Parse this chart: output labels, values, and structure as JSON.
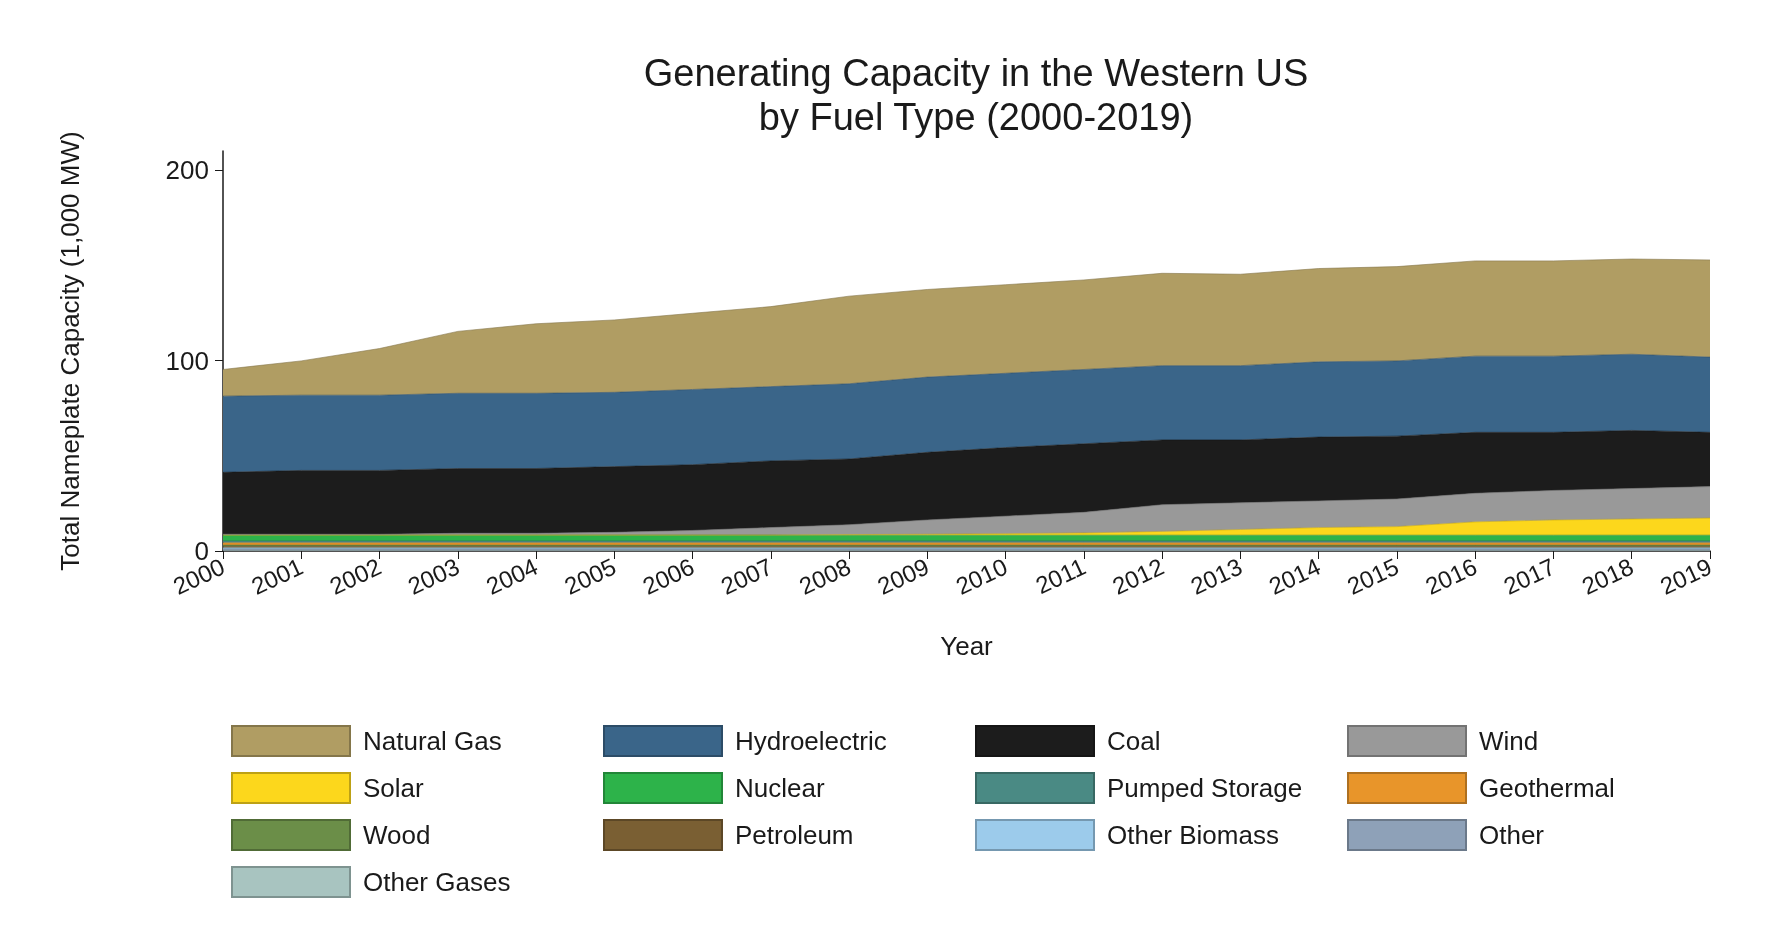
{
  "chart_data": {
    "type": "area",
    "stacked": true,
    "title": "Generating Capacity in the Western US\nby Fuel Type (2000-2019)",
    "xlabel": "Year",
    "ylabel": "Total Nameplate Capacity (1,000 MW)",
    "categories": [
      "2000",
      "2001",
      "2002",
      "2003",
      "2004",
      "2005",
      "2006",
      "2007",
      "2008",
      "2009",
      "2010",
      "2011",
      "2012",
      "2013",
      "2014",
      "2015",
      "2016",
      "2017",
      "2018",
      "2019"
    ],
    "ylim": [
      0,
      210
    ],
    "yticks": [
      0,
      100,
      200
    ],
    "grid": false,
    "legend": "bottom",
    "marker": "none",
    "series": [
      {
        "name": "Other Gases",
        "color": "#a8c4c0",
        "values": [
          0.3,
          0.3,
          0.3,
          0.3,
          0.3,
          0.3,
          0.3,
          0.3,
          0.3,
          0.3,
          0.3,
          0.3,
          0.3,
          0.3,
          0.3,
          0.3,
          0.3,
          0.3,
          0.3,
          0.3
        ]
      },
      {
        "name": "Other",
        "color": "#8ea1b8",
        "values": [
          0.8,
          0.8,
          0.8,
          0.8,
          0.8,
          0.8,
          0.8,
          0.8,
          0.8,
          0.8,
          0.8,
          0.8,
          0.8,
          0.8,
          0.8,
          0.8,
          0.8,
          0.8,
          0.8,
          0.8
        ]
      },
      {
        "name": "Other Biomass",
        "color": "#9ccbeb",
        "values": [
          0.6,
          0.6,
          0.6,
          0.6,
          0.6,
          0.6,
          0.6,
          0.6,
          0.6,
          0.6,
          0.6,
          0.6,
          0.6,
          0.6,
          0.6,
          0.6,
          0.6,
          0.6,
          0.6,
          0.6
        ]
      },
      {
        "name": "Petroleum",
        "color": "#7a5f33",
        "values": [
          0.8,
          0.8,
          0.8,
          0.8,
          0.8,
          0.8,
          0.8,
          0.8,
          0.8,
          0.8,
          0.8,
          0.8,
          0.8,
          0.8,
          0.8,
          0.8,
          0.8,
          0.8,
          0.8,
          0.8
        ]
      },
      {
        "name": "Wood",
        "color": "#6b8e48",
        "values": [
          0.6,
          0.6,
          0.6,
          0.6,
          0.6,
          0.6,
          0.6,
          0.6,
          0.6,
          0.6,
          0.6,
          0.6,
          0.6,
          0.6,
          0.6,
          0.6,
          0.6,
          0.6,
          0.6,
          0.6
        ]
      },
      {
        "name": "Geothermal",
        "color": "#e8952a",
        "values": [
          1.2,
          1.2,
          1.2,
          1.2,
          1.2,
          1.2,
          1.2,
          1.2,
          1.2,
          1.2,
          1.2,
          1.2,
          1.2,
          1.2,
          1.2,
          1.2,
          1.2,
          1.2,
          1.2,
          1.2
        ]
      },
      {
        "name": "Pumped Storage",
        "color": "#4a8a84",
        "values": [
          1,
          1,
          1,
          1,
          1,
          1,
          1,
          1,
          1,
          1,
          1,
          1,
          1,
          1,
          1,
          1,
          1,
          1,
          1,
          1
        ]
      },
      {
        "name": "Nuclear",
        "color": "#2db34a",
        "values": [
          3,
          3,
          3,
          3,
          3,
          3,
          3,
          3,
          3,
          3,
          3,
          3,
          3,
          3,
          3,
          3,
          3,
          3,
          3,
          3
        ]
      },
      {
        "name": "Solar",
        "color": "#fcd71c",
        "values": [
          0.1,
          0.1,
          0.1,
          0.1,
          0.1,
          0.1,
          0.1,
          0.1,
          0.3,
          0.5,
          0.8,
          1.2,
          2,
          3,
          4,
          4.5,
          7,
          8,
          8.5,
          9
        ]
      },
      {
        "name": "Wind",
        "color": "#999999",
        "values": [
          0.4,
          0.4,
          0.4,
          0.9,
          0.9,
          1.4,
          2.4,
          3.9,
          5.2,
          7.5,
          9.2,
          10.8,
          14,
          14,
          14,
          14.5,
          15,
          15.5,
          16,
          16.5
        ]
      },
      {
        "name": "Coal",
        "color": "#1c1c1c",
        "values": [
          32.5,
          33.5,
          33.5,
          34,
          34,
          34.5,
          34.5,
          35,
          34.5,
          35.5,
          36,
          36,
          34,
          33,
          33.5,
          33,
          32,
          30.5,
          30.5,
          28.5
        ]
      },
      {
        "name": "Hydroelectric",
        "color": "#3a6589",
        "values": [
          40,
          39.5,
          39.5,
          39.5,
          39.5,
          39,
          39.5,
          39,
          39.5,
          39.5,
          39,
          39,
          39,
          39,
          39.5,
          39.5,
          40,
          40,
          40,
          39.5
        ]
      },
      {
        "name": "Natural Gas",
        "color": "#b09d63",
        "values": [
          14,
          18,
          24.5,
          32.5,
          36.5,
          38,
          40,
          42,
          46,
          46,
          46.5,
          47,
          48.5,
          48,
          49,
          49.5,
          50,
          50,
          50,
          51
        ]
      }
    ]
  }
}
